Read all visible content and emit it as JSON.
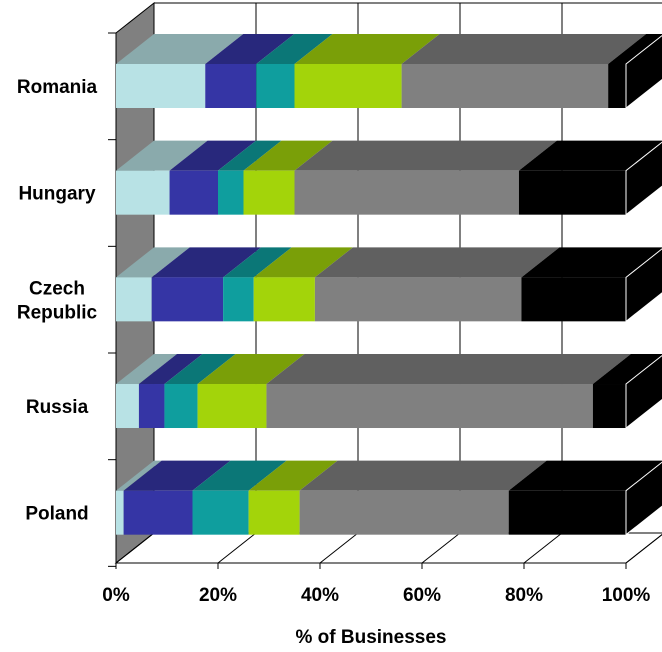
{
  "chart_data": {
    "type": "bar",
    "orientation": "horizontal",
    "stacked": "100%",
    "three_d": true,
    "title": "",
    "xlabel": "% of Businesses",
    "ylabel": "",
    "xlim": [
      0,
      100
    ],
    "x_ticks": [
      "0%",
      "20%",
      "40%",
      "60%",
      "80%",
      "100%"
    ],
    "grid": true,
    "legend": "none",
    "categories": [
      "Romania",
      "Hungary",
      "Czech Republic",
      "Russia",
      "Poland"
    ],
    "category_lines": [
      [
        "Romania"
      ],
      [
        "Hungary"
      ],
      [
        "Czech",
        "Republic"
      ],
      [
        "Russia"
      ],
      [
        "Poland"
      ]
    ],
    "segment_colors": [
      "#b8e2e5",
      "#3535a5",
      "#0f9e9e",
      "#a3d40a",
      "#808080",
      "#000000"
    ],
    "series": [
      {
        "values": [
          17.5,
          10.5,
          7,
          4.5,
          1.5
        ]
      },
      {
        "values": [
          10,
          9.5,
          14,
          5,
          13.5
        ]
      },
      {
        "values": [
          7.5,
          5,
          6,
          6.5,
          11
        ]
      },
      {
        "values": [
          21,
          10,
          12,
          13.5,
          10
        ]
      },
      {
        "values": [
          40.5,
          44,
          40.5,
          64,
          41
        ]
      },
      {
        "values": [
          3.5,
          21,
          20.5,
          6.5,
          23
        ]
      }
    ]
  }
}
